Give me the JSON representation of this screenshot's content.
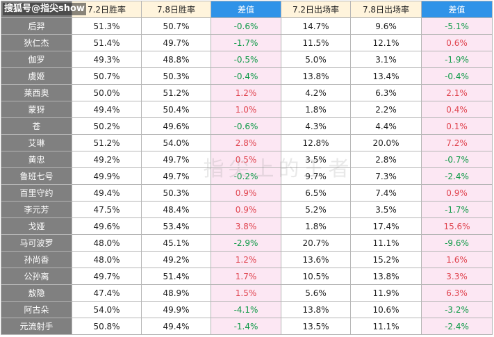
{
  "watermark": {
    "source": "搜狐号@指尖show",
    "overlay_text": "指尖上的王者"
  },
  "headers": [
    "",
    "7.2日胜率",
    "7.8日胜率",
    "差值",
    "7.2日出场率",
    "7.8日出场率",
    "差值"
  ],
  "colors": {
    "header_plain": "#fff4dc",
    "header_diff": "#2f93e8",
    "name_cell": "#808080",
    "diff_cell": "#fce7f3",
    "positive": "#e0444f",
    "negative": "#0f9a47"
  },
  "rows": [
    {
      "hero": "后羿",
      "wr_72": "51.3%",
      "wr_78": "50.7%",
      "wr_diff": "-0.6%",
      "pr_72": "14.7%",
      "pr_78": "9.6%",
      "pr_diff": "-5.1%"
    },
    {
      "hero": "狄仁杰",
      "wr_72": "51.4%",
      "wr_78": "49.7%",
      "wr_diff": "-1.7%",
      "pr_72": "11.5%",
      "pr_78": "12.1%",
      "pr_diff": "0.6%"
    },
    {
      "hero": "伽罗",
      "wr_72": "49.3%",
      "wr_78": "48.8%",
      "wr_diff": "-0.5%",
      "pr_72": "5.0%",
      "pr_78": "3.1%",
      "pr_diff": "-1.9%"
    },
    {
      "hero": "虞姬",
      "wr_72": "50.7%",
      "wr_78": "50.3%",
      "wr_diff": "-0.4%",
      "pr_72": "13.8%",
      "pr_78": "13.4%",
      "pr_diff": "-0.4%"
    },
    {
      "hero": "莱西奥",
      "wr_72": "50.0%",
      "wr_78": "51.2%",
      "wr_diff": "1.2%",
      "pr_72": "4.2%",
      "pr_78": "6.3%",
      "pr_diff": "2.1%"
    },
    {
      "hero": "蒙犽",
      "wr_72": "49.4%",
      "wr_78": "50.4%",
      "wr_diff": "1.0%",
      "pr_72": "1.8%",
      "pr_78": "2.2%",
      "pr_diff": "0.4%"
    },
    {
      "hero": "苍",
      "wr_72": "50.2%",
      "wr_78": "49.6%",
      "wr_diff": "-0.6%",
      "pr_72": "4.3%",
      "pr_78": "4.4%",
      "pr_diff": "0.1%"
    },
    {
      "hero": "艾琳",
      "wr_72": "51.2%",
      "wr_78": "54.0%",
      "wr_diff": "2.8%",
      "pr_72": "12.8%",
      "pr_78": "20.0%",
      "pr_diff": "7.2%"
    },
    {
      "hero": "黄忠",
      "wr_72": "49.2%",
      "wr_78": "49.7%",
      "wr_diff": "0.5%",
      "pr_72": "3.5%",
      "pr_78": "2.8%",
      "pr_diff": "-0.7%"
    },
    {
      "hero": "鲁班七号",
      "wr_72": "49.9%",
      "wr_78": "49.7%",
      "wr_diff": "-0.2%",
      "pr_72": "9.7%",
      "pr_78": "7.3%",
      "pr_diff": "-2.4%"
    },
    {
      "hero": "百里守约",
      "wr_72": "49.4%",
      "wr_78": "50.3%",
      "wr_diff": "0.9%",
      "pr_72": "6.5%",
      "pr_78": "7.4%",
      "pr_diff": "0.9%"
    },
    {
      "hero": "李元芳",
      "wr_72": "47.5%",
      "wr_78": "48.4%",
      "wr_diff": "0.9%",
      "pr_72": "5.2%",
      "pr_78": "3.5%",
      "pr_diff": "-1.7%"
    },
    {
      "hero": "戈娅",
      "wr_72": "49.6%",
      "wr_78": "53.4%",
      "wr_diff": "3.8%",
      "pr_72": "1.8%",
      "pr_78": "17.4%",
      "pr_diff": "15.6%"
    },
    {
      "hero": "马可波罗",
      "wr_72": "48.0%",
      "wr_78": "45.1%",
      "wr_diff": "-2.9%",
      "pr_72": "20.7%",
      "pr_78": "11.1%",
      "pr_diff": "-9.6%"
    },
    {
      "hero": "孙尚香",
      "wr_72": "48.0%",
      "wr_78": "49.2%",
      "wr_diff": "1.2%",
      "pr_72": "13.6%",
      "pr_78": "15.2%",
      "pr_diff": "1.6%"
    },
    {
      "hero": "公孙离",
      "wr_72": "49.7%",
      "wr_78": "51.4%",
      "wr_diff": "1.7%",
      "pr_72": "10.5%",
      "pr_78": "13.8%",
      "pr_diff": "3.3%"
    },
    {
      "hero": "敖隐",
      "wr_72": "47.4%",
      "wr_78": "48.9%",
      "wr_diff": "1.5%",
      "pr_72": "5.6%",
      "pr_78": "11.9%",
      "pr_diff": "6.3%"
    },
    {
      "hero": "阿古朵",
      "wr_72": "54.0%",
      "wr_78": "49.9%",
      "wr_diff": "-4.1%",
      "pr_72": "13.8%",
      "pr_78": "10.6%",
      "pr_diff": "-3.2%"
    },
    {
      "hero": "元流射手",
      "wr_72": "50.8%",
      "wr_78": "49.4%",
      "wr_diff": "-1.4%",
      "pr_72": "13.5%",
      "pr_78": "11.1%",
      "pr_diff": "-2.4%"
    }
  ]
}
